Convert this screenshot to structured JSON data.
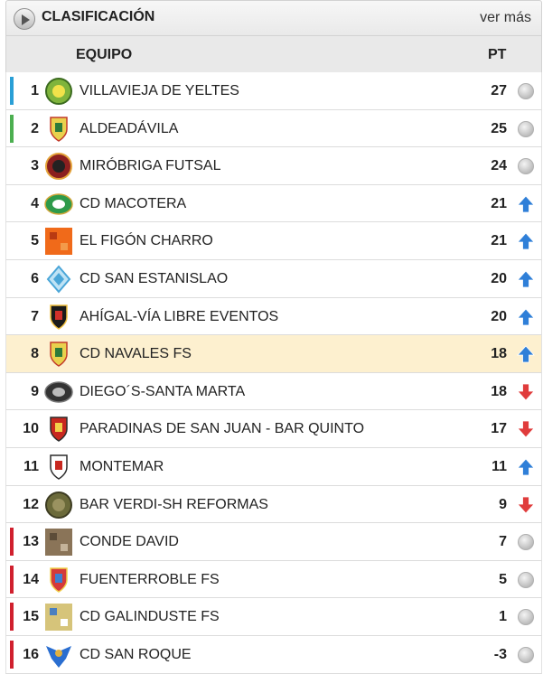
{
  "header": {
    "title": "CLASIFICACIÓN",
    "more_link": "ver más",
    "play_icon": "play-circle-icon"
  },
  "columns": {
    "team": "EQUIPO",
    "points": "PT"
  },
  "colors": {
    "zone_blue": "#2a9fd6",
    "zone_green": "#4caf50",
    "zone_red": "#d0202e",
    "arrow_up": "#2f7fd8",
    "arrow_down": "#e03c3c",
    "highlight_row": "#fdf0cf"
  },
  "standings": [
    {
      "pos": "1",
      "team": "VILLAVIEJA DE YELTES",
      "pts": "27",
      "trend": "same",
      "zone": "blue",
      "crest": "green-round-crest-icon"
    },
    {
      "pos": "2",
      "team": "ALDEADÁVILA",
      "pts": "25",
      "trend": "same",
      "zone": "green",
      "crest": "town-shield-crest-icon"
    },
    {
      "pos": "3",
      "team": "MIRÓBRIGA FUTSAL",
      "pts": "24",
      "trend": "same",
      "zone": "none",
      "crest": "bull-mascot-crest-icon"
    },
    {
      "pos": "4",
      "team": "CD MACOTERA",
      "pts": "21",
      "trend": "up",
      "zone": "none",
      "crest": "green-white-crest-icon"
    },
    {
      "pos": "5",
      "team": "EL FIGÓN CHARRO",
      "pts": "21",
      "trend": "up",
      "zone": "none",
      "crest": "orange-pattern-crest-icon"
    },
    {
      "pos": "6",
      "team": "CD SAN ESTANISLAO",
      "pts": "20",
      "trend": "up",
      "zone": "none",
      "crest": "sky-blue-crest-icon"
    },
    {
      "pos": "7",
      "team": "AHÍGAL-VÍA LIBRE EVENTOS",
      "pts": "20",
      "trend": "up",
      "zone": "none",
      "crest": "black-red-shield-crest-icon"
    },
    {
      "pos": "8",
      "team": "CD NAVALES FS",
      "pts": "18",
      "trend": "up",
      "zone": "none",
      "crest": "town-shield-crest-icon",
      "highlight": true
    },
    {
      "pos": "9",
      "team": "DIEGO´S-SANTA MARTA",
      "pts": "18",
      "trend": "down",
      "zone": "none",
      "crest": "dark-eye-crest-icon"
    },
    {
      "pos": "10",
      "team": "PARADINAS DE SAN JUAN - BAR QUINTO",
      "pts": "17",
      "trend": "down",
      "zone": "none",
      "crest": "red-shield-crest-icon"
    },
    {
      "pos": "11",
      "team": "MONTEMAR",
      "pts": "11",
      "trend": "up",
      "zone": "none",
      "crest": "red-white-shield-crest-icon"
    },
    {
      "pos": "12",
      "team": "BAR VERDI-SH REFORMAS",
      "pts": "9",
      "trend": "down",
      "zone": "none",
      "crest": "olive-round-crest-icon"
    },
    {
      "pos": "13",
      "team": "CONDE DAVID",
      "pts": "7",
      "trend": "same",
      "zone": "red",
      "crest": "photo-crest-icon"
    },
    {
      "pos": "14",
      "team": "FUENTERROBLE FS",
      "pts": "5",
      "trend": "same",
      "zone": "red",
      "crest": "crown-shield-crest-icon"
    },
    {
      "pos": "15",
      "team": "CD GALINDUSTE FS",
      "pts": "1",
      "trend": "same",
      "zone": "red",
      "crest": "blue-square-crest-icon"
    },
    {
      "pos": "16",
      "team": "CD SAN ROQUE",
      "pts": "-3",
      "trend": "same",
      "zone": "red",
      "crest": "blue-bird-crest-icon"
    }
  ]
}
